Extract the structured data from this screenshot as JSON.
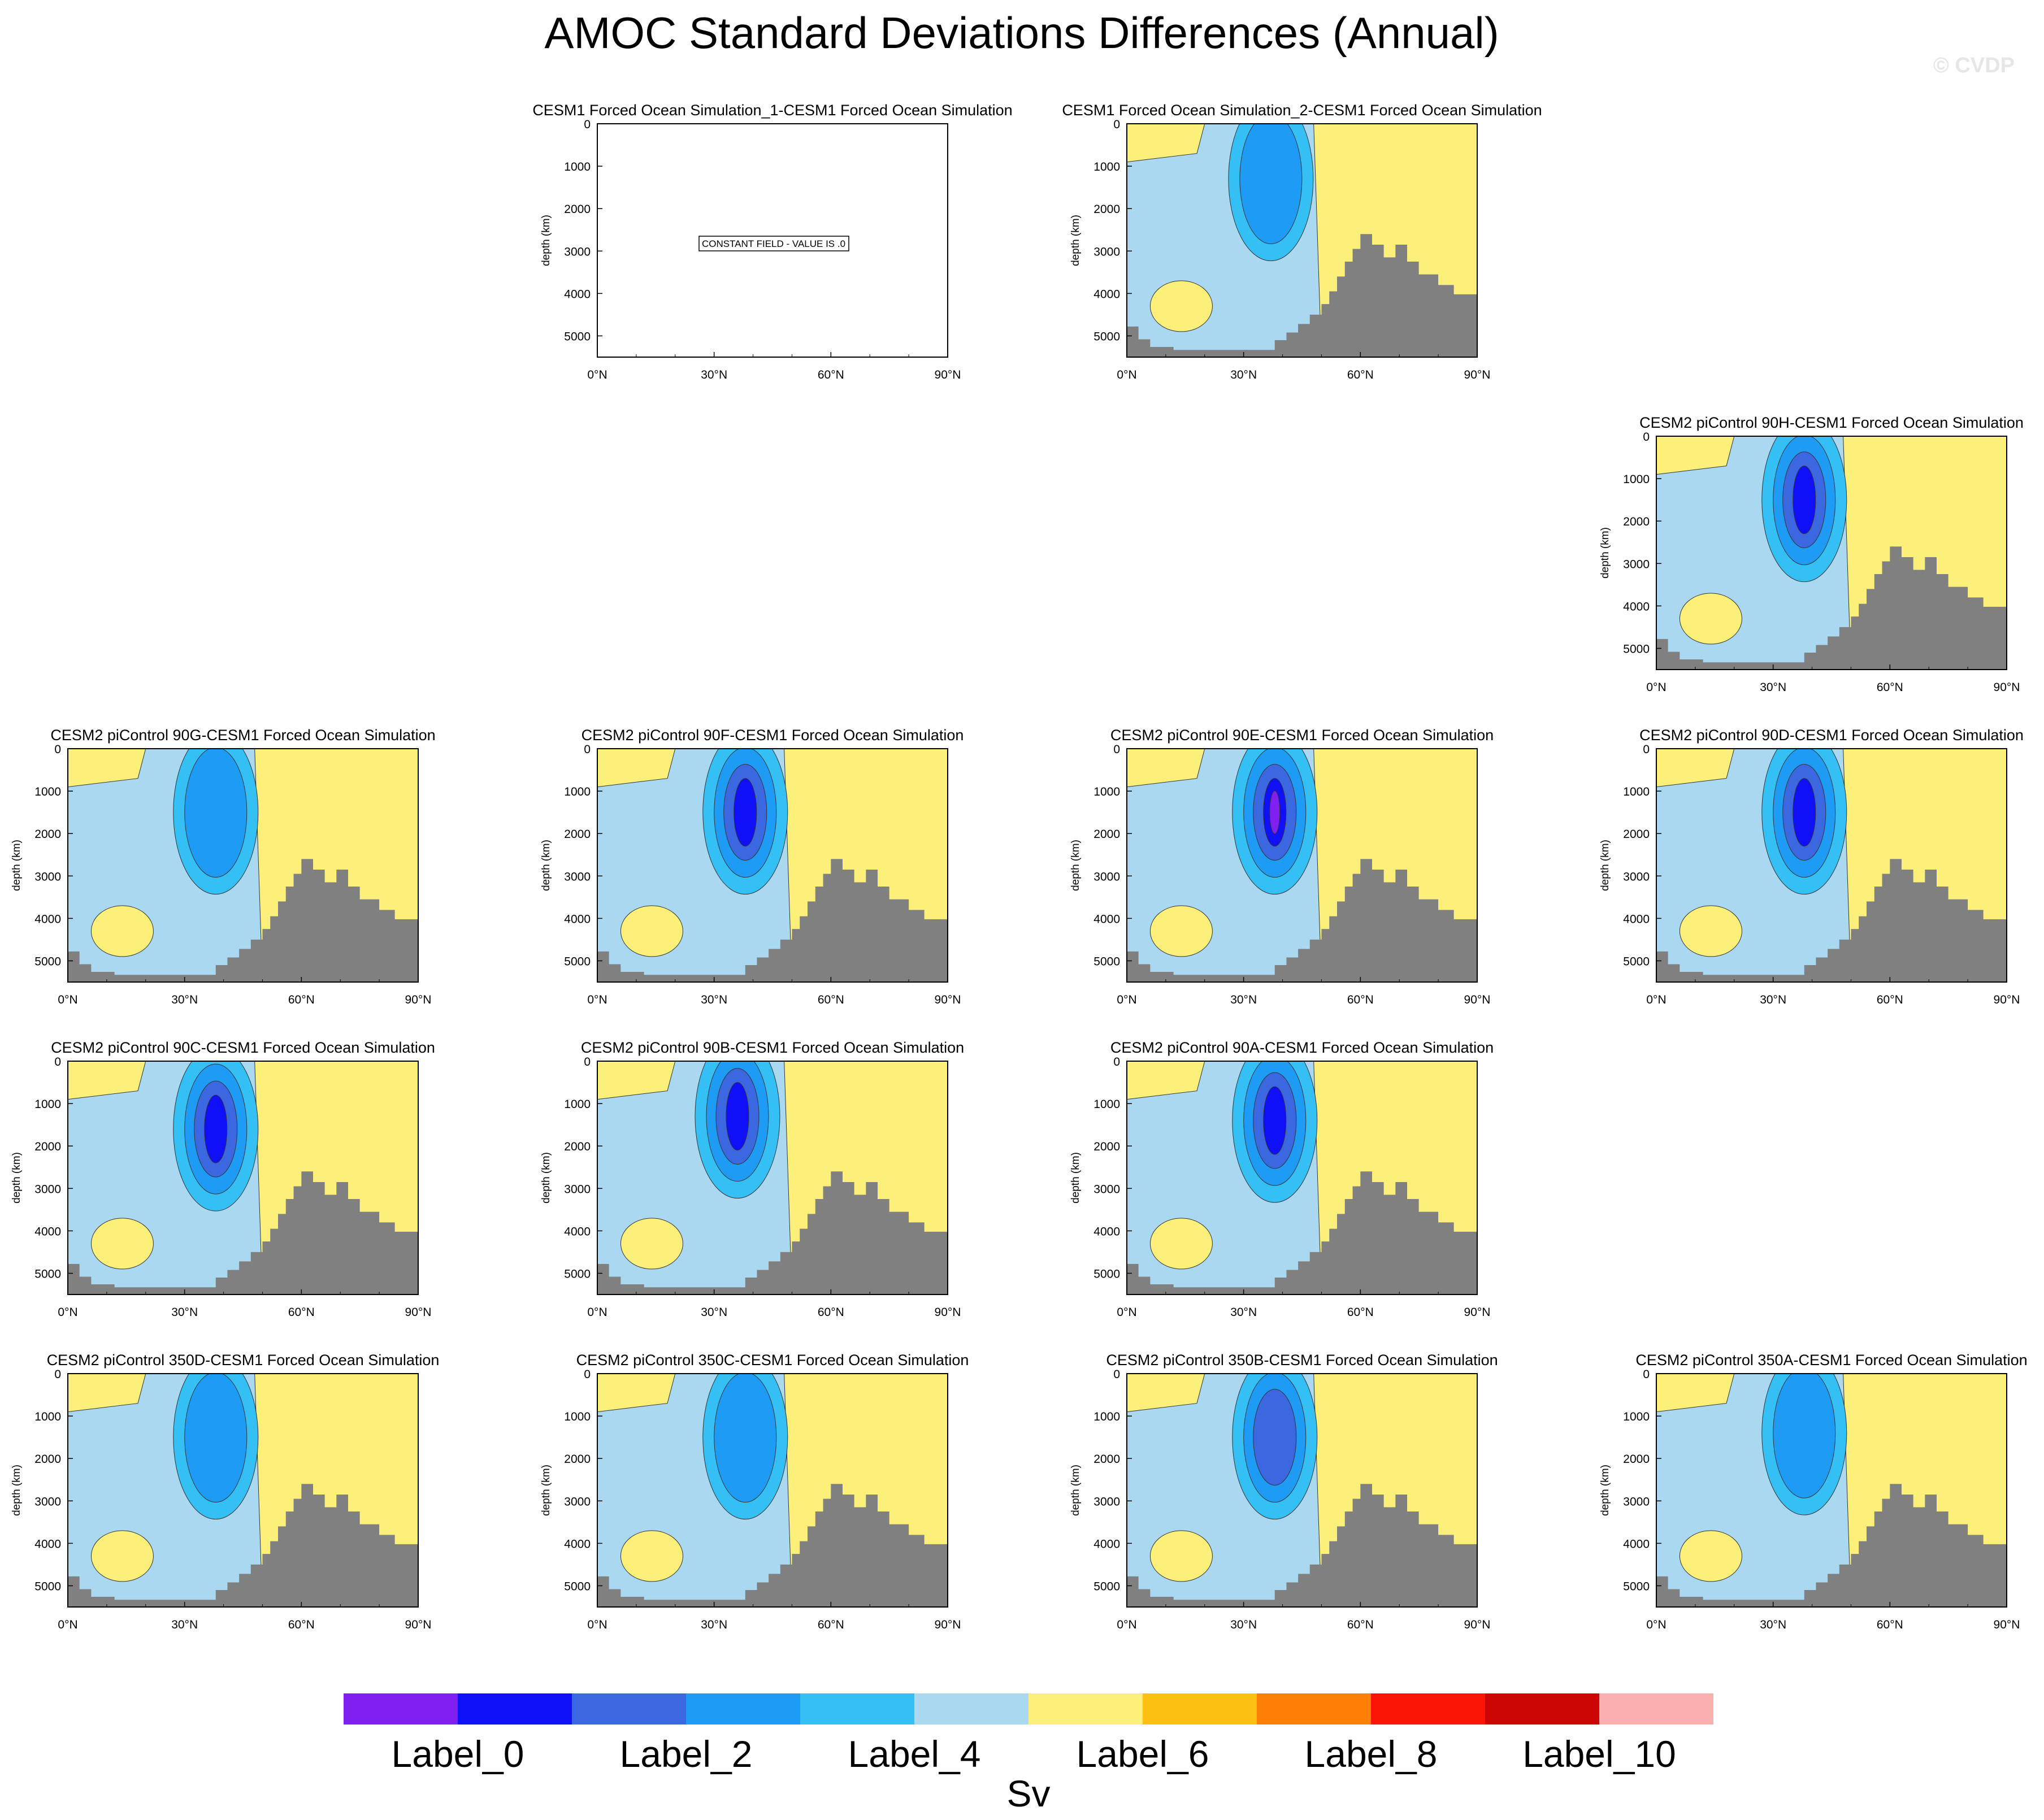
{
  "title": "AMOC Standard Deviations Differences (Annual)",
  "watermark": "© CVDP",
  "colorbar": {
    "colors": [
      "#7f1ff0",
      "#0f0ff8",
      "#3b67e0",
      "#1e9bf5",
      "#35c0f5",
      "#a9d8f0",
      "#fcf07a",
      "#fbc012",
      "#fb7f05",
      "#fb1506",
      "#cc0505",
      "#fbb0b0"
    ],
    "tick_labels": [
      "Label_0",
      "Label_2",
      "Label_4",
      "Label_6",
      "Label_8",
      "Label_10"
    ],
    "units": "Sv"
  },
  "chart_data": [
    {
      "type": "heatmap",
      "title": "CESM1 Forced Ocean Simulation_1-CESM1 Forced Ocean Simulation",
      "ylabel": "depth (km)",
      "yticks": [
        "0",
        "1000",
        "2000",
        "3000",
        "4000",
        "5000"
      ],
      "xticks": [
        "0°N",
        "30°N",
        "60°N",
        "90°N"
      ],
      "xlim": [
        0,
        90
      ],
      "ylim": [
        5500,
        0
      ],
      "constant": true,
      "annotation": "CONSTANT FIELD - VALUE IS .0"
    },
    {
      "type": "heatmap",
      "title": "CESM1 Forced Ocean Simulation_2-CESM1 Forced Ocean Simulation",
      "ylabel": "depth (km)",
      "yticks": [
        "0",
        "1000",
        "2000",
        "3000",
        "4000",
        "5000"
      ],
      "xticks": [
        "0°N",
        "30°N",
        "60°N",
        "90°N"
      ],
      "xlim": [
        0,
        90
      ],
      "ylim": [
        5500,
        0
      ],
      "blob": {
        "lat": 37,
        "depth": 1300,
        "level": 3
      }
    },
    {
      "type": "heatmap",
      "title": "CESM2 piControl 90H-CESM1 Forced Ocean Simulation",
      "ylabel": "depth (km)",
      "yticks": [
        "0",
        "1000",
        "2000",
        "3000",
        "4000",
        "5000"
      ],
      "xticks": [
        "0°N",
        "30°N",
        "60°N",
        "90°N"
      ],
      "xlim": [
        0,
        90
      ],
      "ylim": [
        5500,
        0
      ],
      "blob": {
        "lat": 38,
        "depth": 1500,
        "level": 1
      }
    },
    {
      "type": "heatmap",
      "title": "CESM2 piControl 90G-CESM1 Forced Ocean Simulation",
      "ylabel": "depth (km)",
      "yticks": [
        "0",
        "1000",
        "2000",
        "3000",
        "4000",
        "5000"
      ],
      "xticks": [
        "0°N",
        "30°N",
        "60°N",
        "90°N"
      ],
      "xlim": [
        0,
        90
      ],
      "ylim": [
        5500,
        0
      ],
      "blob": {
        "lat": 38,
        "depth": 1500,
        "level": 3
      }
    },
    {
      "type": "heatmap",
      "title": "CESM2 piControl 90F-CESM1 Forced Ocean Simulation",
      "ylabel": "depth (km)",
      "yticks": [
        "0",
        "1000",
        "2000",
        "3000",
        "4000",
        "5000"
      ],
      "xticks": [
        "0°N",
        "30°N",
        "60°N",
        "90°N"
      ],
      "xlim": [
        0,
        90
      ],
      "ylim": [
        5500,
        0
      ],
      "blob": {
        "lat": 38,
        "depth": 1500,
        "level": 1
      }
    },
    {
      "type": "heatmap",
      "title": "CESM2 piControl 90E-CESM1 Forced Ocean Simulation",
      "ylabel": "depth (km)",
      "yticks": [
        "0",
        "1000",
        "2000",
        "3000",
        "4000",
        "5000"
      ],
      "xticks": [
        "0°N",
        "30°N",
        "60°N",
        "90°N"
      ],
      "xlim": [
        0,
        90
      ],
      "ylim": [
        5500,
        0
      ],
      "blob": {
        "lat": 38,
        "depth": 1500,
        "level": 0
      }
    },
    {
      "type": "heatmap",
      "title": "CESM2 piControl 90D-CESM1 Forced Ocean Simulation",
      "ylabel": "depth (km)",
      "yticks": [
        "0",
        "1000",
        "2000",
        "3000",
        "4000",
        "5000"
      ],
      "xticks": [
        "0°N",
        "30°N",
        "60°N",
        "90°N"
      ],
      "xlim": [
        0,
        90
      ],
      "ylim": [
        5500,
        0
      ],
      "blob": {
        "lat": 38,
        "depth": 1500,
        "level": 1
      }
    },
    {
      "type": "heatmap",
      "title": "CESM2 piControl 90C-CESM1 Forced Ocean Simulation",
      "ylabel": "depth (km)",
      "yticks": [
        "0",
        "1000",
        "2000",
        "3000",
        "4000",
        "5000"
      ],
      "xticks": [
        "0°N",
        "30°N",
        "60°N",
        "90°N"
      ],
      "xlim": [
        0,
        90
      ],
      "ylim": [
        5500,
        0
      ],
      "blob": {
        "lat": 38,
        "depth": 1600,
        "level": 1
      }
    },
    {
      "type": "heatmap",
      "title": "CESM2 piControl 90B-CESM1 Forced Ocean Simulation",
      "ylabel": "depth (km)",
      "yticks": [
        "0",
        "1000",
        "2000",
        "3000",
        "4000",
        "5000"
      ],
      "xticks": [
        "0°N",
        "30°N",
        "60°N",
        "90°N"
      ],
      "xlim": [
        0,
        90
      ],
      "ylim": [
        5500,
        0
      ],
      "blob": {
        "lat": 36,
        "depth": 1300,
        "level": 1
      }
    },
    {
      "type": "heatmap",
      "title": "CESM2 piControl 90A-CESM1 Forced Ocean Simulation",
      "ylabel": "depth (km)",
      "yticks": [
        "0",
        "1000",
        "2000",
        "3000",
        "4000",
        "5000"
      ],
      "xticks": [
        "0°N",
        "30°N",
        "60°N",
        "90°N"
      ],
      "xlim": [
        0,
        90
      ],
      "ylim": [
        5500,
        0
      ],
      "blob": {
        "lat": 38,
        "depth": 1400,
        "level": 1
      }
    },
    {
      "type": "heatmap",
      "title": "CESM2 piControl 350D-CESM1 Forced Ocean Simulation",
      "ylabel": "depth (km)",
      "yticks": [
        "0",
        "1000",
        "2000",
        "3000",
        "4000",
        "5000"
      ],
      "xticks": [
        "0°N",
        "30°N",
        "60°N",
        "90°N"
      ],
      "xlim": [
        0,
        90
      ],
      "ylim": [
        5500,
        0
      ],
      "blob": {
        "lat": 38,
        "depth": 1500,
        "level": 3
      }
    },
    {
      "type": "heatmap",
      "title": "CESM2 piControl 350C-CESM1 Forced Ocean Simulation",
      "ylabel": "depth (km)",
      "yticks": [
        "0",
        "1000",
        "2000",
        "3000",
        "4000",
        "5000"
      ],
      "xticks": [
        "0°N",
        "30°N",
        "60°N",
        "90°N"
      ],
      "xlim": [
        0,
        90
      ],
      "ylim": [
        5500,
        0
      ],
      "blob": {
        "lat": 38,
        "depth": 1500,
        "level": 3
      }
    },
    {
      "type": "heatmap",
      "title": "CESM2 piControl 350B-CESM1 Forced Ocean Simulation",
      "ylabel": "depth (km)",
      "yticks": [
        "0",
        "1000",
        "2000",
        "3000",
        "4000",
        "5000"
      ],
      "xticks": [
        "0°N",
        "30°N",
        "60°N",
        "90°N"
      ],
      "xlim": [
        0,
        90
      ],
      "ylim": [
        5500,
        0
      ],
      "blob": {
        "lat": 38,
        "depth": 1500,
        "level": 2
      }
    },
    {
      "type": "heatmap",
      "title": "CESM2 piControl 350A-CESM1 Forced Ocean Simulation",
      "ylabel": "depth (km)",
      "yticks": [
        "0",
        "1000",
        "2000",
        "3000",
        "4000",
        "5000"
      ],
      "xticks": [
        "0°N",
        "30°N",
        "60°N",
        "90°N"
      ],
      "xlim": [
        0,
        90
      ],
      "ylim": [
        5500,
        0
      ],
      "blob": {
        "lat": 38,
        "depth": 1400,
        "level": 3
      }
    }
  ]
}
